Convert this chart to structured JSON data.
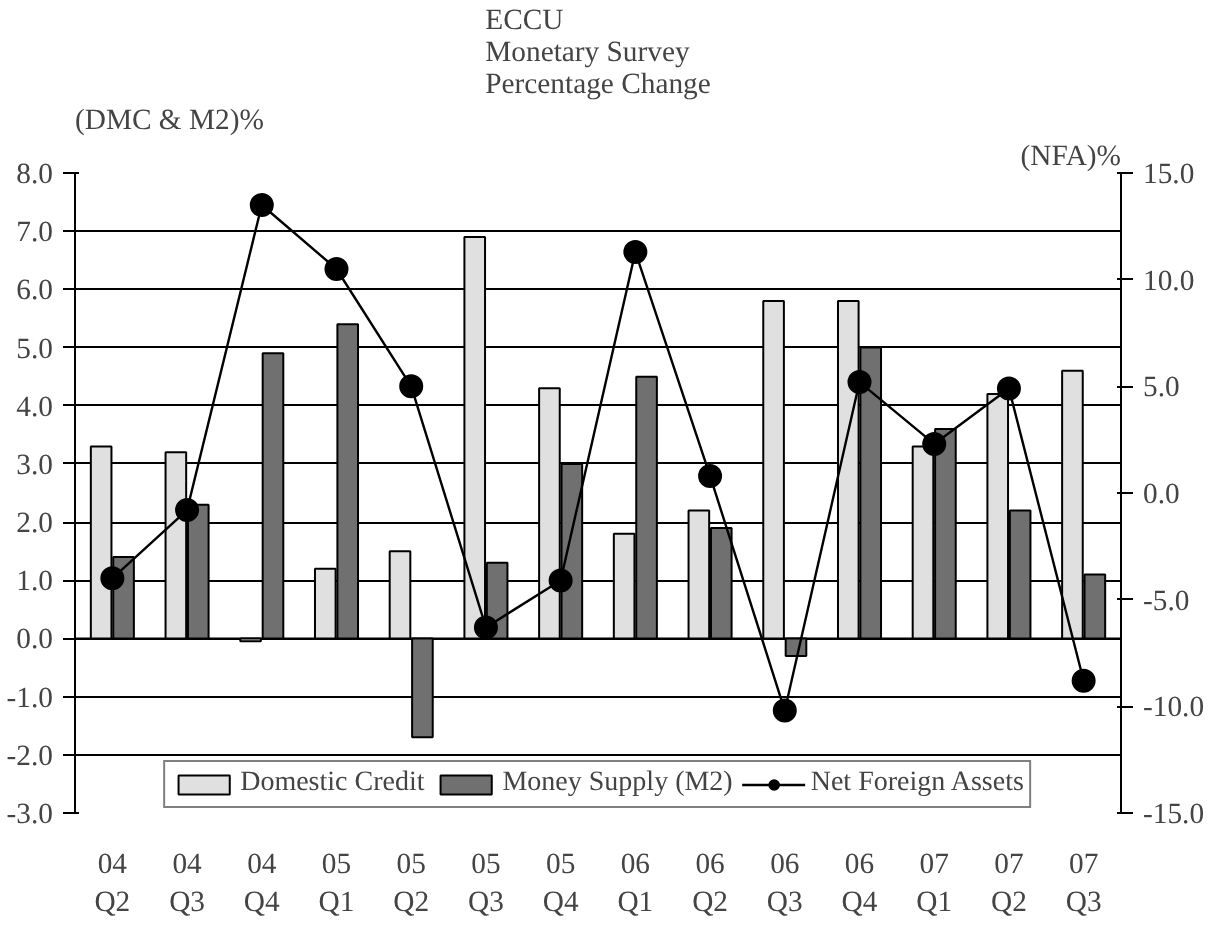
{
  "chart_data": {
    "type": "bar",
    "title": "ECCU\nMonetary Survey\nPercentage Change",
    "ylabel": "(DMC & M2)%",
    "y2label": "(NFA)%",
    "categories": [
      "04\nQ2",
      "04\nQ3",
      "04\nQ4",
      "05\nQ1",
      "05\nQ2",
      "05\nQ3",
      "05\nQ4",
      "06\nQ1",
      "06\nQ2",
      "06\nQ3",
      "06\nQ4",
      "07\nQ1",
      "07\nQ2",
      "07\nQ3"
    ],
    "series": [
      {
        "name": "Domestic Credit",
        "color": "#e0e0e0",
        "values": [
          3.3,
          3.2,
          -0.05,
          1.2,
          1.5,
          6.9,
          4.3,
          1.8,
          2.2,
          5.8,
          5.8,
          3.3,
          4.2,
          4.6
        ]
      },
      {
        "name": "Money Supply (M2)",
        "color": "#707070",
        "values": [
          1.4,
          2.3,
          4.9,
          5.4,
          -1.7,
          1.3,
          3.0,
          4.5,
          1.9,
          -0.3,
          5.0,
          3.6,
          2.2,
          1.1
        ]
      },
      {
        "name": "Net Foreign Assets",
        "type": "line",
        "axis": "y2",
        "color": "#000000",
        "values": [
          -4.0,
          -0.8,
          13.5,
          10.5,
          5.0,
          -6.3,
          -4.1,
          11.3,
          0.8,
          -10.2,
          5.2,
          2.3,
          4.9,
          -8.8
        ]
      }
    ],
    "ylim": [
      -3,
      8
    ],
    "yticks": [
      {
        "value": -3,
        "label": "-3.0"
      },
      {
        "value": -2,
        "label": "-2.0"
      },
      {
        "value": -1,
        "label": "-1.0"
      },
      {
        "value": 0,
        "label": "0.0"
      },
      {
        "value": 1,
        "label": "1.0"
      },
      {
        "value": 2,
        "label": "2.0"
      },
      {
        "value": 3,
        "label": "3.0"
      },
      {
        "value": 4,
        "label": "4.0"
      },
      {
        "value": 5,
        "label": "5.0"
      },
      {
        "value": 6,
        "label": "6.0"
      },
      {
        "value": 7,
        "label": "7.0"
      },
      {
        "value": 8,
        "label": "8.0"
      }
    ],
    "y2lim": [
      -15,
      15
    ],
    "y2ticks": [
      {
        "value": -15,
        "label": "-15.0"
      },
      {
        "value": -10,
        "label": "-10.0"
      },
      {
        "value": -5,
        "label": "-5.0"
      },
      {
        "value": 0,
        "label": "0.0"
      },
      {
        "value": 5,
        "label": "5.0"
      },
      {
        "value": 10,
        "label": "10.0"
      },
      {
        "value": 15,
        "label": "15.0"
      }
    ],
    "grid": "y",
    "legend": "bottom",
    "marker": "circle",
    "line_style": "solid"
  }
}
